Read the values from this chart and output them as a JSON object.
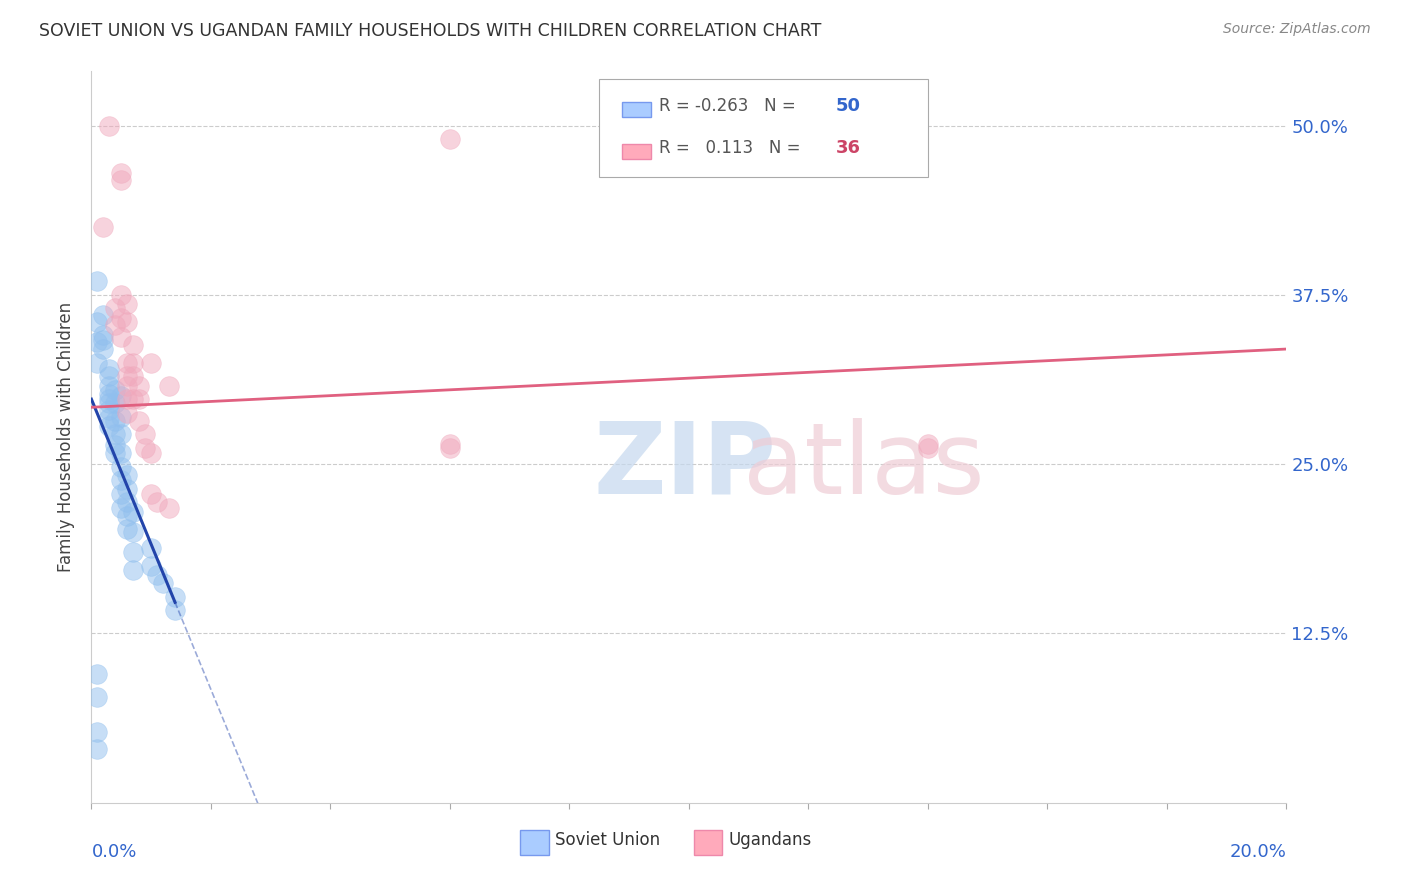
{
  "title": "SOVIET UNION VS UGANDAN FAMILY HOUSEHOLDS WITH CHILDREN CORRELATION CHART",
  "source": "Source: ZipAtlas.com",
  "ylabel": "Family Households with Children",
  "ytick_labels": [
    "",
    "12.5%",
    "25.0%",
    "37.5%",
    "50.0%"
  ],
  "ytick_values": [
    0.0,
    0.125,
    0.25,
    0.375,
    0.5
  ],
  "xmin": 0.0,
  "xmax": 0.2,
  "ymin": 0.0,
  "ymax": 0.54,
  "soviet_color": "#90bfee",
  "ugandan_color": "#f0a8bc",
  "soviet_line_color": "#2244aa",
  "ugandan_line_color": "#e06080",
  "soviet_points": [
    [
      0.001,
      0.385
    ],
    [
      0.001,
      0.355
    ],
    [
      0.001,
      0.34
    ],
    [
      0.002,
      0.36
    ],
    [
      0.002,
      0.345
    ],
    [
      0.002,
      0.335
    ],
    [
      0.003,
      0.32
    ],
    [
      0.003,
      0.315
    ],
    [
      0.003,
      0.308
    ],
    [
      0.003,
      0.302
    ],
    [
      0.003,
      0.295
    ],
    [
      0.003,
      0.29
    ],
    [
      0.003,
      0.284
    ],
    [
      0.003,
      0.278
    ],
    [
      0.004,
      0.305
    ],
    [
      0.004,
      0.295
    ],
    [
      0.004,
      0.282
    ],
    [
      0.004,
      0.272
    ],
    [
      0.004,
      0.264
    ],
    [
      0.004,
      0.258
    ],
    [
      0.005,
      0.3
    ],
    [
      0.005,
      0.285
    ],
    [
      0.005,
      0.272
    ],
    [
      0.005,
      0.258
    ],
    [
      0.005,
      0.248
    ],
    [
      0.005,
      0.238
    ],
    [
      0.005,
      0.228
    ],
    [
      0.005,
      0.218
    ],
    [
      0.006,
      0.242
    ],
    [
      0.006,
      0.232
    ],
    [
      0.006,
      0.222
    ],
    [
      0.006,
      0.212
    ],
    [
      0.006,
      0.202
    ],
    [
      0.007,
      0.215
    ],
    [
      0.007,
      0.2
    ],
    [
      0.007,
      0.185
    ],
    [
      0.007,
      0.172
    ],
    [
      0.01,
      0.188
    ],
    [
      0.01,
      0.175
    ],
    [
      0.011,
      0.168
    ],
    [
      0.012,
      0.162
    ],
    [
      0.014,
      0.152
    ],
    [
      0.014,
      0.142
    ],
    [
      0.001,
      0.095
    ],
    [
      0.001,
      0.078
    ],
    [
      0.001,
      0.052
    ],
    [
      0.001,
      0.04
    ],
    [
      0.001,
      0.325
    ],
    [
      0.002,
      0.342
    ],
    [
      0.003,
      0.298
    ]
  ],
  "ugandan_points": [
    [
      0.002,
      0.425
    ],
    [
      0.003,
      0.5
    ],
    [
      0.005,
      0.465
    ],
    [
      0.005,
      0.46
    ],
    [
      0.004,
      0.365
    ],
    [
      0.004,
      0.353
    ],
    [
      0.005,
      0.375
    ],
    [
      0.005,
      0.358
    ],
    [
      0.005,
      0.344
    ],
    [
      0.006,
      0.368
    ],
    [
      0.006,
      0.355
    ],
    [
      0.006,
      0.325
    ],
    [
      0.006,
      0.315
    ],
    [
      0.006,
      0.308
    ],
    [
      0.006,
      0.298
    ],
    [
      0.006,
      0.288
    ],
    [
      0.007,
      0.338
    ],
    [
      0.007,
      0.325
    ],
    [
      0.007,
      0.315
    ],
    [
      0.007,
      0.298
    ],
    [
      0.008,
      0.308
    ],
    [
      0.008,
      0.298
    ],
    [
      0.008,
      0.282
    ],
    [
      0.009,
      0.272
    ],
    [
      0.009,
      0.262
    ],
    [
      0.01,
      0.325
    ],
    [
      0.01,
      0.258
    ],
    [
      0.01,
      0.228
    ],
    [
      0.011,
      0.222
    ],
    [
      0.013,
      0.308
    ],
    [
      0.013,
      0.218
    ],
    [
      0.06,
      0.49
    ],
    [
      0.06,
      0.265
    ],
    [
      0.06,
      0.262
    ],
    [
      0.14,
      0.265
    ],
    [
      0.14,
      0.262
    ]
  ],
  "soviet_line": {
    "x0": 0.0,
    "y0": 0.298,
    "x1": 0.014,
    "y1": 0.148
  },
  "ugandan_line": {
    "x0": 0.0,
    "y0": 0.292,
    "x1": 0.2,
    "y1": 0.335
  }
}
